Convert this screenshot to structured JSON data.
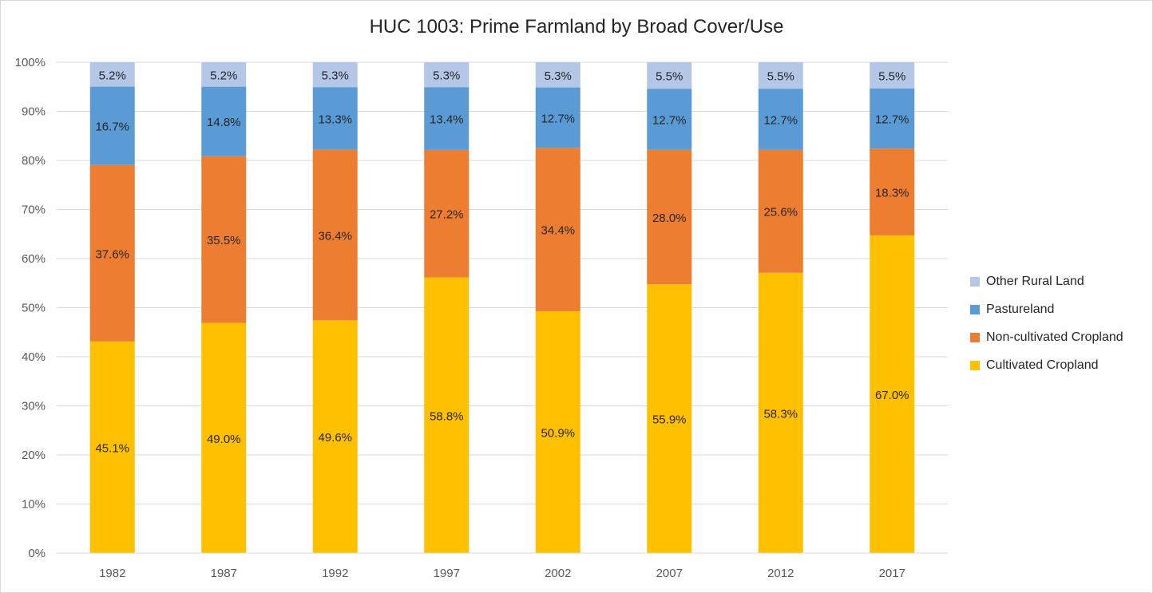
{
  "chart_data": {
    "type": "bar",
    "stacked": true,
    "normalized_percent": true,
    "title": "HUC 1003:  Prime Farmland by Broad Cover/Use",
    "xlabel": "",
    "ylabel": "",
    "categories": [
      "1982",
      "1987",
      "1992",
      "1997",
      "2002",
      "2007",
      "2012",
      "2017"
    ],
    "ylim": [
      0,
      100
    ],
    "yticks": [
      "0%",
      "10%",
      "20%",
      "30%",
      "40%",
      "50%",
      "60%",
      "70%",
      "80%",
      "90%",
      "100%"
    ],
    "grid": true,
    "legend_position": "right",
    "series": [
      {
        "name": "Cultivated Cropland",
        "color": "#FFC000",
        "values": [
          45.1,
          49.0,
          49.6,
          58.8,
          50.9,
          55.9,
          58.3,
          67.0
        ],
        "labels": [
          "45.1%",
          "49.0%",
          "49.6%",
          "58.8%",
          "50.9%",
          "55.9%",
          "58.3%",
          "67.0%"
        ]
      },
      {
        "name": "Non-cultivated Cropland",
        "color": "#ED7D31",
        "values": [
          37.6,
          35.5,
          36.4,
          27.2,
          34.4,
          28.0,
          25.6,
          18.3
        ],
        "labels": [
          "37.6%",
          "35.5%",
          "36.4%",
          "27.2%",
          "34.4%",
          "28.0%",
          "25.6%",
          "18.3%"
        ]
      },
      {
        "name": "Pastureland",
        "color": "#5B9BD5",
        "values": [
          16.7,
          14.8,
          13.3,
          13.4,
          12.7,
          12.7,
          12.7,
          12.7
        ],
        "labels": [
          "16.7%",
          "14.8%",
          "13.3%",
          "13.4%",
          "12.7%",
          "12.7%",
          "12.7%",
          "12.7%"
        ]
      },
      {
        "name": "Other Rural Land",
        "color": "#B4C7E7",
        "values": [
          5.2,
          5.2,
          5.3,
          5.3,
          5.3,
          5.5,
          5.5,
          5.5
        ],
        "labels": [
          "5.2%",
          "5.2%",
          "5.3%",
          "5.3%",
          "5.3%",
          "5.5%",
          "5.5%",
          "5.5%"
        ]
      }
    ],
    "legend_order": [
      "Other Rural Land",
      "Pastureland",
      "Non-cultivated Cropland",
      "Cultivated Cropland"
    ]
  }
}
